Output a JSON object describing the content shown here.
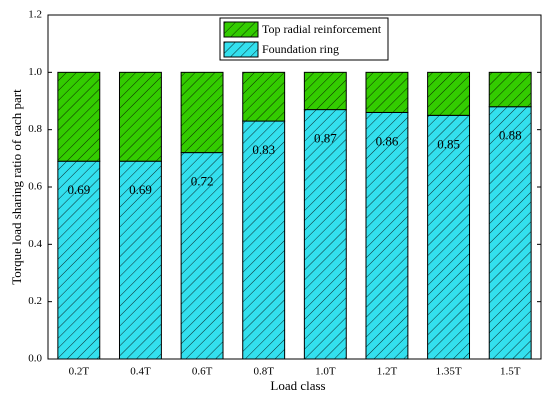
{
  "chart_data": {
    "type": "stacked_bar",
    "x_label": "Load class",
    "y_label": "Torque load sharing ratio of each part",
    "categories": [
      "0.2T",
      "0.4T",
      "0.6T",
      "0.8T",
      "1.0T",
      "1.2T",
      "1.35T",
      "1.5T"
    ],
    "series": [
      {
        "name": "Top radial reinforcement",
        "color": "#33cc00",
        "values": [
          0.31,
          0.31,
          0.28,
          0.17,
          0.13,
          0.14,
          0.15,
          0.12
        ]
      },
      {
        "name": "Foundation ring",
        "color": "#33e0ee",
        "values": [
          0.69,
          0.69,
          0.72,
          0.83,
          0.87,
          0.86,
          0.85,
          0.88
        ]
      }
    ],
    "ylim": [
      0,
      1.2
    ],
    "yticks": [
      {
        "value": 0,
        "label": "0.0"
      },
      0.2,
      0.4,
      0.6,
      0.8,
      {
        "value": 1,
        "label": "1.0"
      },
      1.2
    ],
    "legend": "top"
  }
}
